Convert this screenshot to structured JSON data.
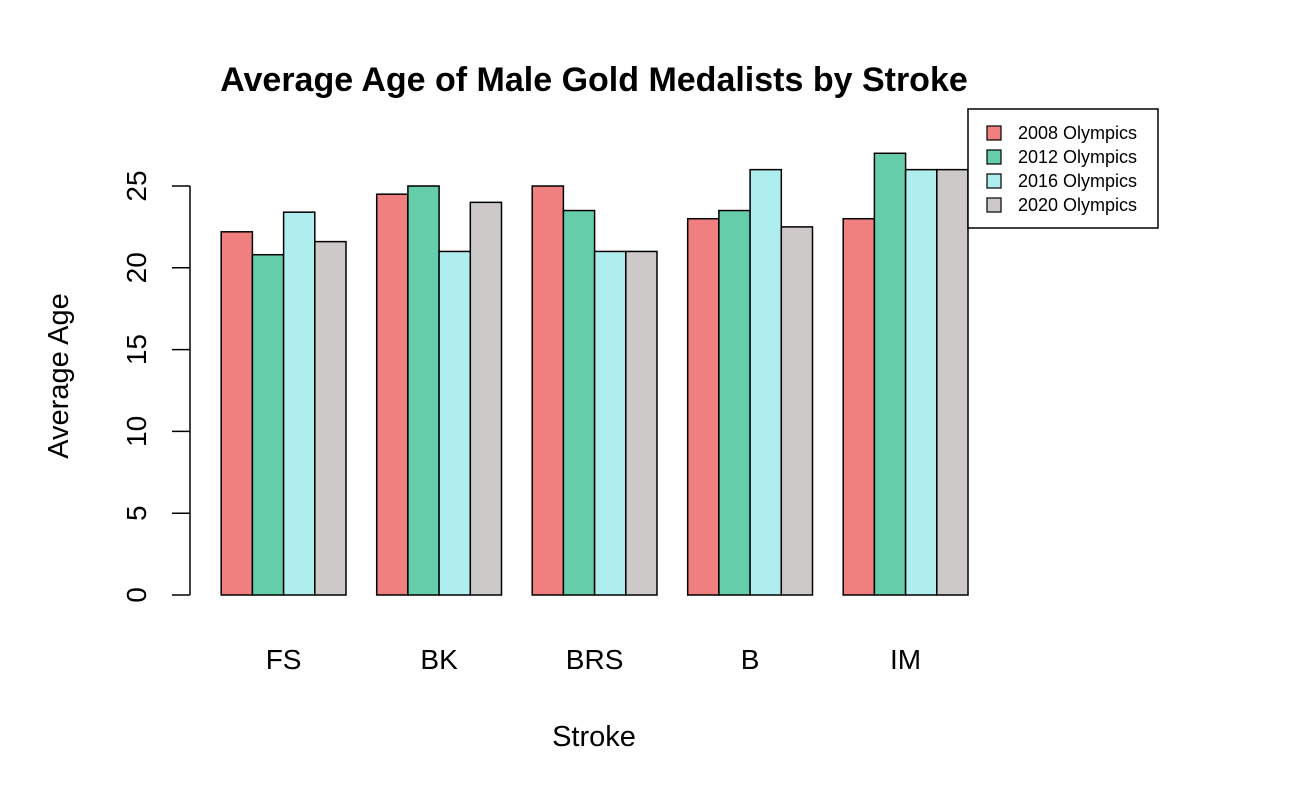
{
  "chart_data": {
    "type": "bar",
    "title": "Average Age of Male Gold Medalists by Stroke",
    "xlabel": "Stroke",
    "ylabel": "Average Age",
    "categories": [
      "FS",
      "BK",
      "BRS",
      "B",
      "IM"
    ],
    "yticks": [
      "0",
      "5",
      "10",
      "15",
      "20",
      "25"
    ],
    "ylim": [
      0,
      25
    ],
    "grid": false,
    "legend_position": "top-right",
    "series": [
      {
        "name": "2008 Olympics",
        "color": "#F08080",
        "values": [
          22.2,
          24.5,
          25.0,
          23.0,
          23.0
        ]
      },
      {
        "name": "2012 Olympics",
        "color": "#66CDAA",
        "values": [
          20.8,
          25.0,
          23.5,
          23.5,
          27.0
        ]
      },
      {
        "name": "2016 Olympics",
        "color": "#AFEEEE",
        "values": [
          23.4,
          21.0,
          21.0,
          26.0,
          26.0
        ]
      },
      {
        "name": "2020 Olympics",
        "color": "#CDC9C9",
        "values": [
          21.6,
          24.0,
          21.0,
          22.5,
          26.0
        ]
      }
    ]
  }
}
